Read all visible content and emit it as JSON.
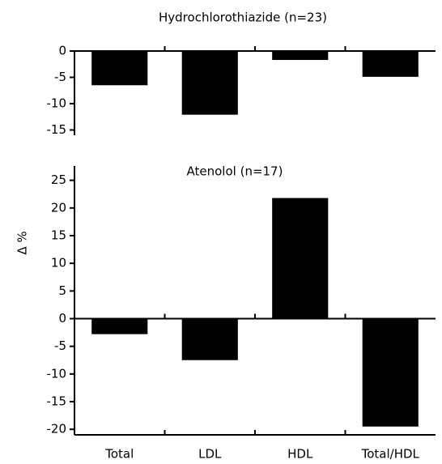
{
  "chart_data": [
    {
      "type": "bar",
      "title": "Hydrochlorothiazide (n=23)",
      "values": [
        -6.5,
        -12.1,
        -1.7,
        -4.9
      ],
      "color": "#000000",
      "ylim": [
        -16,
        0
      ],
      "yticks": [
        0,
        -5,
        -10,
        -15
      ]
    },
    {
      "type": "bar",
      "title": "Atenolol (n=17)",
      "y_label": "Δ %",
      "categories": [
        "Total",
        "LDL",
        "HDL",
        "Total/HDL"
      ],
      "values": [
        -2.8,
        -7.5,
        21.8,
        -19.5
      ],
      "color": "#000000",
      "ylim": [
        -21,
        27
      ],
      "yticks": [
        25,
        20,
        15,
        10,
        5,
        0,
        -5,
        -10,
        -15,
        -20
      ]
    }
  ]
}
